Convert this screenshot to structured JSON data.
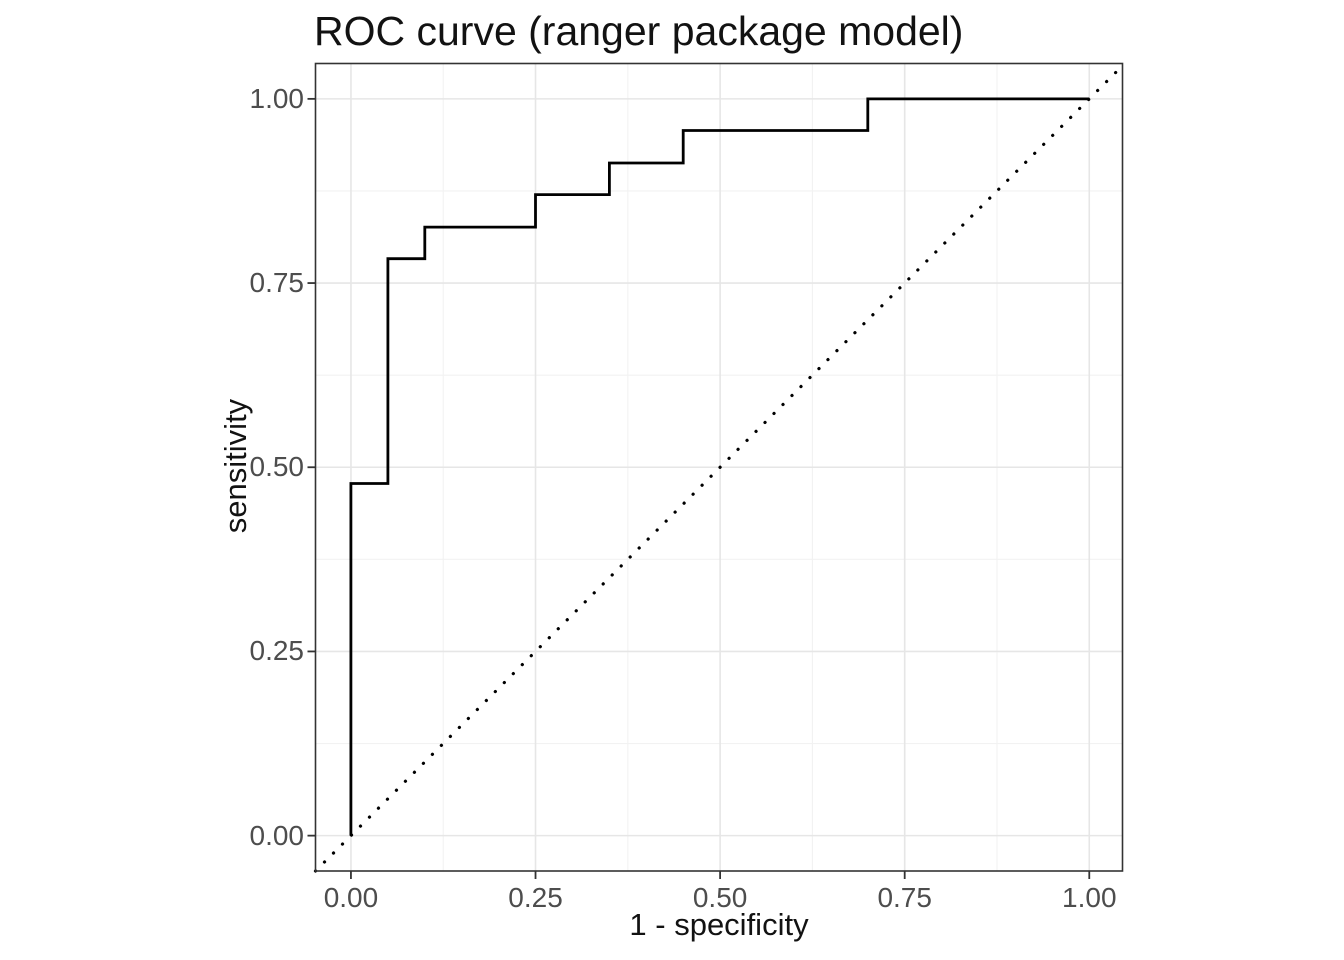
{
  "chart_data": {
    "type": "line",
    "title": "ROC curve (ranger package model)",
    "xlabel": "1 - specificity",
    "ylabel": "sensitivity",
    "xlim": [
      -0.048,
      1.045
    ],
    "ylim": [
      -0.048,
      1.048
    ],
    "x_ticks": [
      0,
      0.25,
      0.5,
      0.75,
      1
    ],
    "x_tick_labels": [
      "0.00",
      "0.25",
      "0.50",
      "0.75",
      "1.00"
    ],
    "x_minor_ticks": [
      0.125,
      0.375,
      0.625,
      0.875
    ],
    "y_ticks": [
      0,
      0.25,
      0.5,
      0.75,
      1
    ],
    "y_tick_labels": [
      "0.00",
      "0.25",
      "0.50",
      "0.75",
      "1.00"
    ],
    "y_minor_ticks": [
      0.125,
      0.375,
      0.625,
      0.875
    ],
    "grid": true,
    "legend": "none",
    "series": [
      {
        "name": "roc_step_curve",
        "style": "solid",
        "line_width": 2.8,
        "points": [
          [
            0,
            0
          ],
          [
            0,
            0.478
          ],
          [
            0.05,
            0.478
          ],
          [
            0.05,
            0.783
          ],
          [
            0.1,
            0.783
          ],
          [
            0.1,
            0.826
          ],
          [
            0.25,
            0.826
          ],
          [
            0.25,
            0.87
          ],
          [
            0.35,
            0.87
          ],
          [
            0.35,
            0.913
          ],
          [
            0.45,
            0.913
          ],
          [
            0.45,
            0.957
          ],
          [
            0.7,
            0.957
          ],
          [
            0.7,
            1
          ],
          [
            1,
            1
          ]
        ]
      },
      {
        "name": "chance_diagonal",
        "style": "dotted",
        "line_width": 3.2,
        "points": [
          [
            -0.048,
            -0.048
          ],
          [
            1.045,
            1.045
          ]
        ]
      }
    ],
    "colors": {
      "curve": "#000000",
      "diagonal": "#000000",
      "grid_major": "#e6e6e6",
      "grid_minor": "#f2f2f2",
      "panel_border": "#333333",
      "tick_mark": "#333333",
      "tick_text": "#4d4d4d",
      "title_text": "#121212",
      "panel_bg": "#ffffff"
    }
  }
}
